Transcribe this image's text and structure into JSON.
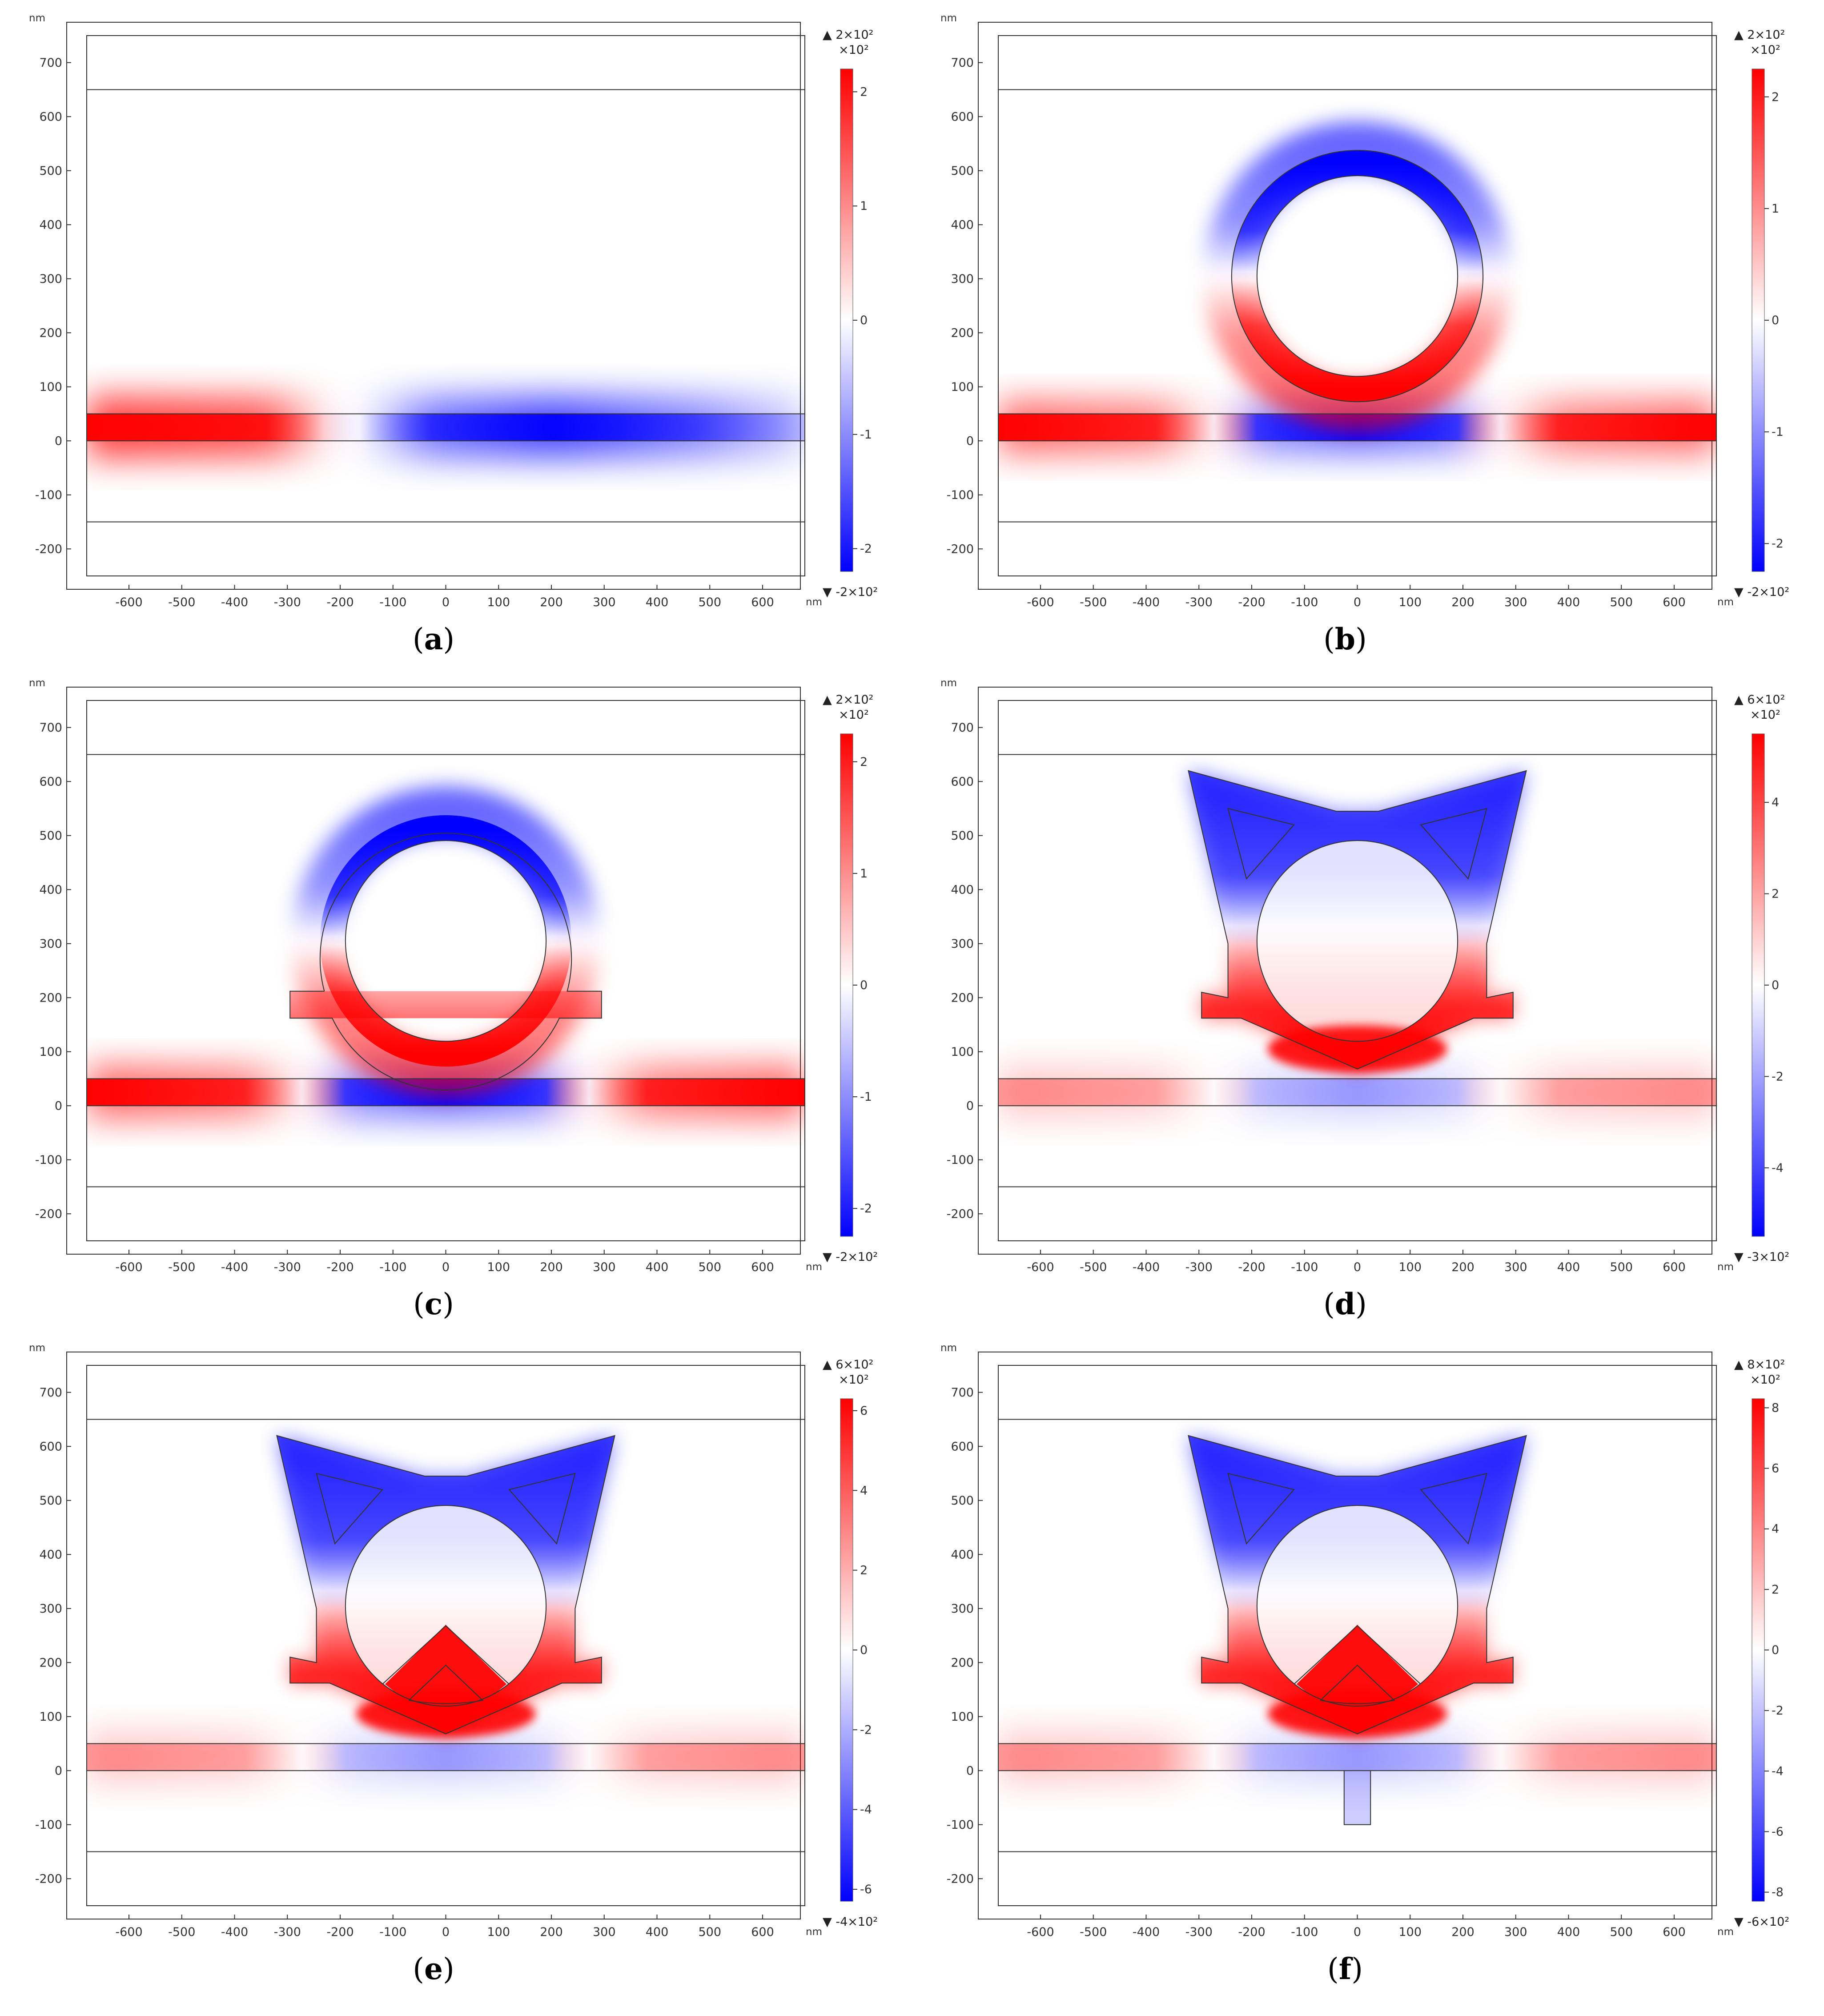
{
  "colors": {
    "positive": "#ff0000",
    "negative": "#0000ff",
    "zero": "#ffffff",
    "geometry_outline": "#333333",
    "frame": "#333333"
  },
  "axes": {
    "x_ticks": [
      "-600",
      "-500",
      "-400",
      "-300",
      "-200",
      "-100",
      "0",
      "100",
      "200",
      "300",
      "400",
      "500",
      "600"
    ],
    "y_ticks": [
      "700",
      "600",
      "500",
      "400",
      "300",
      "200",
      "100",
      "0",
      "-100",
      "-200"
    ],
    "x_unit": "nm",
    "y_unit": "nm",
    "x_range": [
      -680,
      680
    ],
    "y_range": [
      -250,
      750
    ]
  },
  "panels": [
    {
      "label": "a",
      "caption_open": "(",
      "caption_close": ")",
      "geometry": "none",
      "hotspot": "waveguide_only",
      "colorbar": {
        "max_label": "▲ 2×10²",
        "multiplier": "×10²",
        "min_label": "▼ -2×10²",
        "ticks": [
          "2",
          "1",
          "0",
          "-1",
          "-2"
        ],
        "tick_values": [
          2,
          1,
          0,
          -1,
          -2
        ],
        "range": [
          -2.2,
          2.2
        ]
      }
    },
    {
      "label": "b",
      "caption_open": "(",
      "caption_close": ")",
      "geometry": "ring",
      "hotspot": "ring_mode",
      "colorbar": {
        "max_label": "▲ 2×10²",
        "multiplier": "×10²",
        "min_label": "▼ -2×10²",
        "ticks": [
          "2",
          "1",
          "0",
          "-1",
          "-2"
        ],
        "tick_values": [
          2,
          1,
          0,
          -1,
          -2
        ],
        "range": [
          -2.25,
          2.25
        ]
      }
    },
    {
      "label": "c",
      "caption_open": "(",
      "caption_close": ")",
      "geometry": "ring_arms",
      "hotspot": "ring_mode",
      "colorbar": {
        "max_label": "▲ 2×10²",
        "multiplier": "×10²",
        "min_label": "▼ -2×10²",
        "ticks": [
          "2",
          "1",
          "0",
          "-1",
          "-2"
        ],
        "tick_values": [
          2,
          1,
          0,
          -1,
          -2
        ],
        "range": [
          -2.25,
          2.25
        ]
      }
    },
    {
      "label": "d",
      "caption_open": "(",
      "caption_close": ")",
      "geometry": "cat",
      "hotspot": "cat_mode",
      "colorbar": {
        "max_label": "▲ 6×10²",
        "multiplier": "×10²",
        "min_label": "▼ -3×10²",
        "ticks": [
          "4",
          "2",
          "0",
          "-2",
          "-4"
        ],
        "tick_values": [
          4,
          2,
          0,
          -2,
          -4
        ],
        "range": [
          -5.5,
          5.5
        ]
      }
    },
    {
      "label": "e",
      "caption_open": "(",
      "caption_close": ")",
      "geometry": "cat_nose",
      "hotspot": "cat_mode",
      "colorbar": {
        "max_label": "▲ 6×10²",
        "multiplier": "×10²",
        "min_label": "▼ -4×10²",
        "ticks": [
          "6",
          "4",
          "2",
          "0",
          "-2",
          "-4",
          "-6"
        ],
        "tick_values": [
          6,
          4,
          2,
          0,
          -2,
          -4,
          -6
        ],
        "range": [
          -6.3,
          6.3
        ]
      }
    },
    {
      "label": "f",
      "caption_open": "(",
      "caption_close": ")",
      "geometry": "cat_nose_stub",
      "hotspot": "cat_mode",
      "colorbar": {
        "max_label": "▲ 8×10²",
        "multiplier": "×10²",
        "min_label": "▼ -6×10²",
        "ticks": [
          "8",
          "6",
          "4",
          "2",
          "0",
          "-2",
          "-4",
          "-6",
          "-8"
        ],
        "tick_values": [
          8,
          6,
          4,
          2,
          0,
          -2,
          -4,
          -6,
          -8
        ],
        "range": [
          -8.3,
          8.3
        ]
      }
    }
  ]
}
